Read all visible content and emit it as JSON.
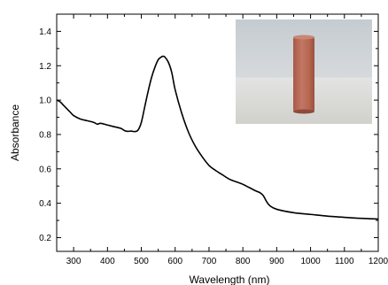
{
  "chart_data": {
    "type": "line",
    "xlabel": "Wavelength (nm)",
    "ylabel": "Absorbance",
    "xlim": [
      250,
      1200
    ],
    "ylim": [
      0.12,
      1.5
    ],
    "x_ticks": [
      300,
      400,
      500,
      600,
      700,
      800,
      900,
      1000,
      1100,
      1200
    ],
    "y_ticks": [
      0.2,
      0.4,
      0.6,
      0.8,
      1.0,
      1.2,
      1.4
    ],
    "x_tick_labels": [
      "300",
      "400",
      "500",
      "600",
      "700",
      "800",
      "900",
      "1000",
      "1100",
      "1200"
    ],
    "y_tick_labels": [
      "0.2",
      "0.4",
      "0.6",
      "0.8",
      "1.0",
      "1.2",
      "1.4"
    ],
    "grid": false,
    "inset": "photograph of a cuvette with a reddish-pink solution",
    "series": [
      {
        "color": "#000000",
        "x": [
          250,
          260,
          270,
          280,
          290,
          300,
          320,
          340,
          360,
          370,
          380,
          400,
          420,
          440,
          450,
          460,
          470,
          480,
          490,
          500,
          510,
          520,
          530,
          540,
          550,
          560,
          565,
          570,
          580,
          590,
          600,
          620,
          640,
          660,
          680,
          700,
          720,
          740,
          760,
          780,
          800,
          820,
          840,
          850,
          860,
          870,
          880,
          900,
          950,
          1000,
          1050,
          1100,
          1150,
          1200
        ],
        "y": [
          1.0,
          0.99,
          0.97,
          0.95,
          0.93,
          0.91,
          0.89,
          0.88,
          0.87,
          0.86,
          0.865,
          0.855,
          0.845,
          0.835,
          0.823,
          0.818,
          0.82,
          0.817,
          0.825,
          0.87,
          0.96,
          1.05,
          1.13,
          1.19,
          1.235,
          1.252,
          1.255,
          1.25,
          1.22,
          1.16,
          1.06,
          0.92,
          0.81,
          0.73,
          0.67,
          0.62,
          0.59,
          0.565,
          0.54,
          0.525,
          0.51,
          0.49,
          0.47,
          0.462,
          0.445,
          0.41,
          0.385,
          0.365,
          0.345,
          0.335,
          0.325,
          0.318,
          0.312,
          0.308
        ]
      }
    ]
  },
  "colors": {
    "line": "#000000",
    "photo_background": "#d6d9dc",
    "cuvette_liquid": "#b96a55"
  }
}
